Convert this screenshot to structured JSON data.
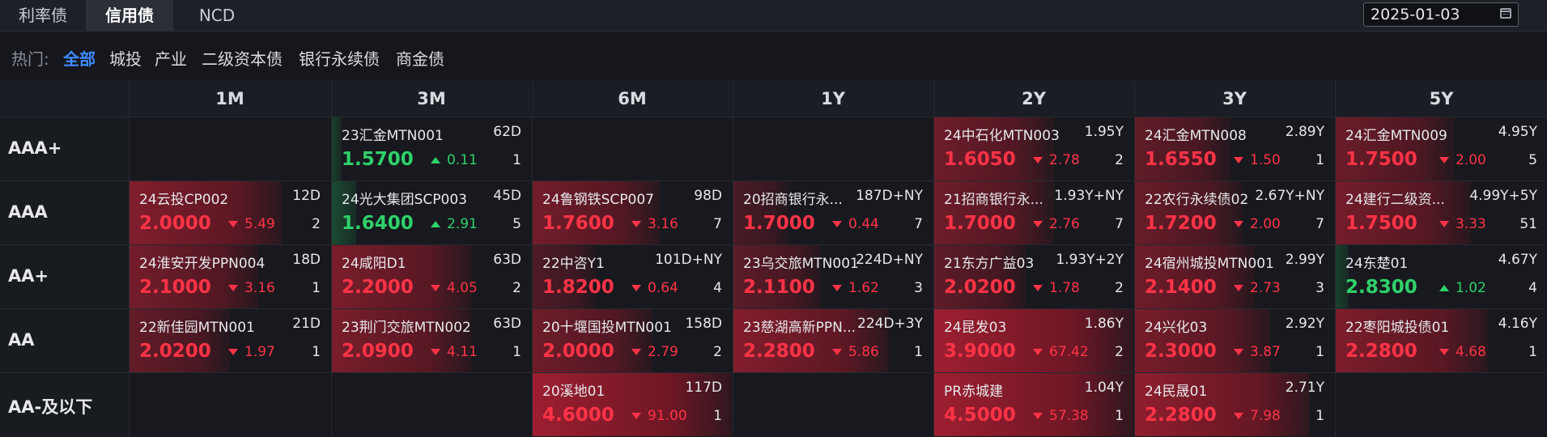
{
  "tabs": [
    "利率债",
    "信用债",
    "NCD"
  ],
  "active_tab": 1,
  "date": "2025-01-03",
  "hot_label": "热门:",
  "hot_items": [
    "全部",
    "城投",
    "产业",
    "二级资本债",
    "银行永续债",
    "商金债"
  ],
  "active_hot": 0,
  "colors": {
    "up": "#2fd16a",
    "down": "#ff3347",
    "accent": "#3d8bff"
  },
  "columns": [
    "1M",
    "3M",
    "6M",
    "1Y",
    "2Y",
    "3Y",
    "5Y"
  ],
  "rows": [
    {
      "label": "AAA+",
      "cells": [
        null,
        {
          "name": "23汇金MTN001",
          "term": "62D",
          "rate": "1.5700",
          "dir": "up",
          "change": "0.11",
          "count": "1",
          "intensity": 0.05
        },
        null,
        null,
        {
          "name": "24中石化MTN003",
          "term": "1.95Y",
          "rate": "1.6050",
          "dir": "down",
          "change": "2.78",
          "count": "2",
          "intensity": 0.5
        },
        {
          "name": "24汇金MTN008",
          "term": "2.89Y",
          "rate": "1.6550",
          "dir": "down",
          "change": "1.50",
          "count": "1",
          "intensity": 0.35
        },
        {
          "name": "24汇金MTN009",
          "term": "4.95Y",
          "rate": "1.7500",
          "dir": "down",
          "change": "2.00",
          "count": "5",
          "intensity": 0.45
        }
      ]
    },
    {
      "label": "AAA",
      "cells": [
        {
          "name": "24云投CP002",
          "term": "12D",
          "rate": "2.0000",
          "dir": "down",
          "change": "5.49",
          "count": "2",
          "intensity": 0.7
        },
        {
          "name": "24光大集团SCP003",
          "term": "45D",
          "rate": "1.6400",
          "dir": "up",
          "change": "2.91",
          "count": "5",
          "intensity": 0.3
        },
        {
          "name": "24鲁钢铁SCP007",
          "term": "98D",
          "rate": "1.7600",
          "dir": "down",
          "change": "3.16",
          "count": "7",
          "intensity": 0.55
        },
        {
          "name": "20招商银行永...",
          "term": "187D+NY",
          "rate": "1.7000",
          "dir": "down",
          "change": "0.44",
          "count": "7",
          "intensity": 0.1
        },
        {
          "name": "21招商银行永...",
          "term": "1.93Y+NY",
          "rate": "1.7000",
          "dir": "down",
          "change": "2.76",
          "count": "7",
          "intensity": 0.5
        },
        {
          "name": "22农行永续债02",
          "term": "2.67Y+NY",
          "rate": "1.7200",
          "dir": "down",
          "change": "2.00",
          "count": "7",
          "intensity": 0.42
        },
        {
          "name": "24建行二级资...",
          "term": "4.99Y+5Y",
          "rate": "1.7500",
          "dir": "down",
          "change": "3.33",
          "count": "51",
          "intensity": 0.55
        }
      ]
    },
    {
      "label": "AA+",
      "cells": [
        {
          "name": "24淮安开发PPN004",
          "term": "18D",
          "rate": "2.1000",
          "dir": "down",
          "change": "3.16",
          "count": "1",
          "intensity": 0.55
        },
        {
          "name": "24咸阳D1",
          "term": "63D",
          "rate": "2.2000",
          "dir": "down",
          "change": "4.05",
          "count": "2",
          "intensity": 0.62
        },
        {
          "name": "22中咨Y1",
          "term": "101D+NY",
          "rate": "1.8200",
          "dir": "down",
          "change": "0.64",
          "count": "4",
          "intensity": 0.15
        },
        {
          "name": "23乌交旅MTN001",
          "term": "224D+NY",
          "rate": "2.1100",
          "dir": "down",
          "change": "1.62",
          "count": "3",
          "intensity": 0.3
        },
        {
          "name": "21东方广益03",
          "term": "1.93Y+2Y",
          "rate": "2.0200",
          "dir": "down",
          "change": "1.78",
          "count": "2",
          "intensity": 0.32
        },
        {
          "name": "24宿州城投MTN001",
          "term": "2.99Y",
          "rate": "2.1400",
          "dir": "down",
          "change": "2.73",
          "count": "3",
          "intensity": 0.5
        },
        {
          "name": "24东楚01",
          "term": "4.67Y",
          "rate": "2.8300",
          "dir": "up",
          "change": "1.02",
          "count": "4",
          "intensity": 0.1
        }
      ]
    },
    {
      "label": "AA",
      "cells": [
        {
          "name": "22新佳园MTN001",
          "term": "21D",
          "rate": "2.0200",
          "dir": "down",
          "change": "1.97",
          "count": "1",
          "intensity": 0.38
        },
        {
          "name": "23荆门交旅MTN002",
          "term": "63D",
          "rate": "2.0900",
          "dir": "down",
          "change": "4.11",
          "count": "1",
          "intensity": 0.62
        },
        {
          "name": "20十堰国投MTN001",
          "term": "158D",
          "rate": "2.0000",
          "dir": "down",
          "change": "2.79",
          "count": "2",
          "intensity": 0.5
        },
        {
          "name": "23慈湖高新PPN...",
          "term": "224D+3Y",
          "rate": "2.2800",
          "dir": "down",
          "change": "5.86",
          "count": "1",
          "intensity": 0.72
        },
        {
          "name": "24昆发03",
          "term": "1.86Y",
          "rate": "3.9000",
          "dir": "down",
          "change": "67.42",
          "count": "2",
          "intensity": 1.0
        },
        {
          "name": "24兴化03",
          "term": "2.92Y",
          "rate": "2.3000",
          "dir": "down",
          "change": "3.87",
          "count": "1",
          "intensity": 0.6
        },
        {
          "name": "22枣阳城投债01",
          "term": "4.16Y",
          "rate": "2.2800",
          "dir": "down",
          "change": "4.68",
          "count": "1",
          "intensity": 0.65
        }
      ]
    },
    {
      "label": "AA-及以下",
      "cells": [
        null,
        null,
        {
          "name": "20溪地01",
          "term": "117D",
          "rate": "4.6000",
          "dir": "down",
          "change": "91.00",
          "count": "1",
          "intensity": 1.0
        },
        null,
        {
          "name": "PR赤城建",
          "term": "1.04Y",
          "rate": "4.5000",
          "dir": "down",
          "change": "57.38",
          "count": "1",
          "intensity": 1.0
        },
        {
          "name": "24民晟01",
          "term": "2.71Y",
          "rate": "2.2800",
          "dir": "down",
          "change": "7.98",
          "count": "1",
          "intensity": 0.85
        },
        null
      ]
    }
  ]
}
